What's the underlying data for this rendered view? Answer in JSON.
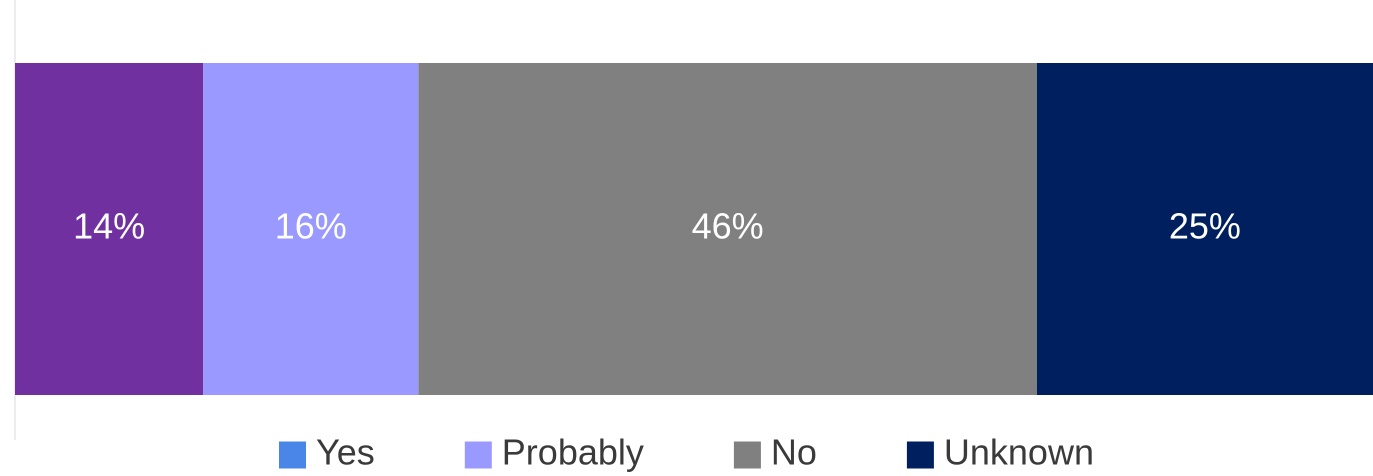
{
  "chart_data": {
    "type": "bar",
    "orientation": "horizontal",
    "stacked": true,
    "categories": [
      ""
    ],
    "series": [
      {
        "name": "Yes",
        "values": [
          14
        ],
        "label": "14%",
        "color": "#7030a0",
        "legend_color": "#4a86e8",
        "label_color": "#ffffff"
      },
      {
        "name": "Probably",
        "values": [
          16
        ],
        "label": "16%",
        "color": "#9999ff",
        "legend_color": "#9999ff",
        "label_color": "#ffffff"
      },
      {
        "name": "No",
        "values": [
          46
        ],
        "label": "46%",
        "color": "#808080",
        "legend_color": "#808080",
        "label_color": "#ffffff"
      },
      {
        "name": "Unknown",
        "values": [
          25
        ],
        "label": "25%",
        "color": "#001f5f",
        "legend_color": "#001f5f",
        "label_color": "#ffffff"
      }
    ],
    "xlim": [
      0,
      101
    ],
    "title": "",
    "xlabel": "",
    "ylabel": "",
    "grid": false,
    "legend_position": "bottom"
  }
}
